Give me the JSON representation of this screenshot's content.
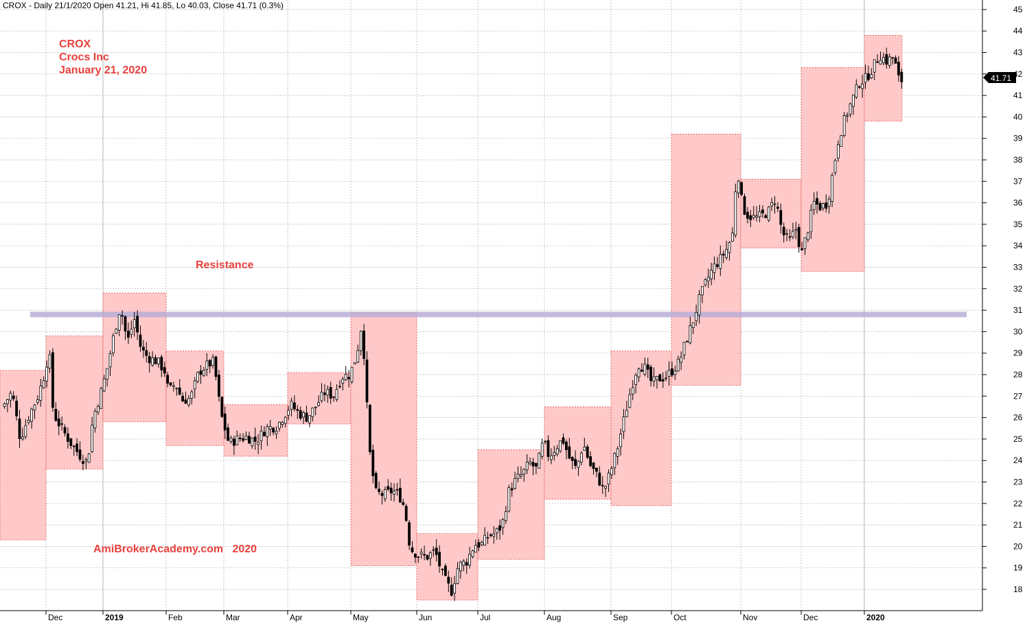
{
  "header": {
    "info_line": "CROX - Daily 21/1/2020 Open 41.21, Hi 41.85, Lo 40.03, Close 41.71 (0.3%)"
  },
  "annotations": {
    "ticker": "CROX",
    "company": "Crocs Inc",
    "date": "January 21, 2020",
    "resistance": "Resistance",
    "watermark": "AmiBrokerAcademy.com   2020"
  },
  "price_tag": "41.71",
  "colors": {
    "box_fill": "#ffc0c0",
    "box_border": "#e05050",
    "resistance_line": "#b9aed6",
    "annotation_text": "#e8413c",
    "candle": "#000000"
  },
  "chart_data": {
    "type": "candlestick",
    "title": "",
    "xlabel": "",
    "ylabel": "",
    "ylim": [
      17,
      45
    ],
    "y_ticks": [
      18,
      19,
      20,
      21,
      22,
      23,
      24,
      25,
      26,
      27,
      28,
      29,
      30,
      31,
      32,
      33,
      34,
      35,
      36,
      37,
      38,
      39,
      40,
      41,
      42,
      43,
      44,
      45
    ],
    "x_labels": [
      "Dec",
      "2019",
      "Feb",
      "Mar",
      "Apr",
      "May",
      "Jun",
      "Jul",
      "Aug",
      "Sep",
      "Oct",
      "Nov",
      "Dec",
      "2020"
    ],
    "resistance_level": 30.8,
    "monthly_ranges": [
      {
        "month": "Nov 2018",
        "low": 20.3,
        "high": 28.2
      },
      {
        "month": "Dec 2018",
        "low": 23.6,
        "high": 29.8
      },
      {
        "month": "Jan 2019",
        "low": 25.8,
        "high": 31.8
      },
      {
        "month": "Feb 2019",
        "low": 24.7,
        "high": 29.1
      },
      {
        "month": "Mar 2019",
        "low": 24.2,
        "high": 26.6
      },
      {
        "month": "Apr 2019",
        "low": 25.7,
        "high": 28.1
      },
      {
        "month": "May 2019",
        "low": 19.1,
        "high": 30.9
      },
      {
        "month": "Jun 2019",
        "low": 17.5,
        "high": 20.6
      },
      {
        "month": "Jul 2019",
        "low": 19.4,
        "high": 24.5
      },
      {
        "month": "Aug 2019",
        "low": 22.2,
        "high": 26.5
      },
      {
        "month": "Sep 2019",
        "low": 21.9,
        "high": 29.1
      },
      {
        "month": "Oct 2019",
        "low": 27.5,
        "high": 39.2
      },
      {
        "month": "Nov 2019",
        "low": 33.9,
        "high": 37.1
      },
      {
        "month": "Dec 2019",
        "low": 32.8,
        "high": 42.3
      },
      {
        "month": "Jan 2020",
        "low": 39.8,
        "high": 43.8
      }
    ],
    "last_bar": {
      "date": "21/1/2020",
      "open": 41.21,
      "high": 41.85,
      "low": 40.03,
      "close": 41.71
    }
  }
}
